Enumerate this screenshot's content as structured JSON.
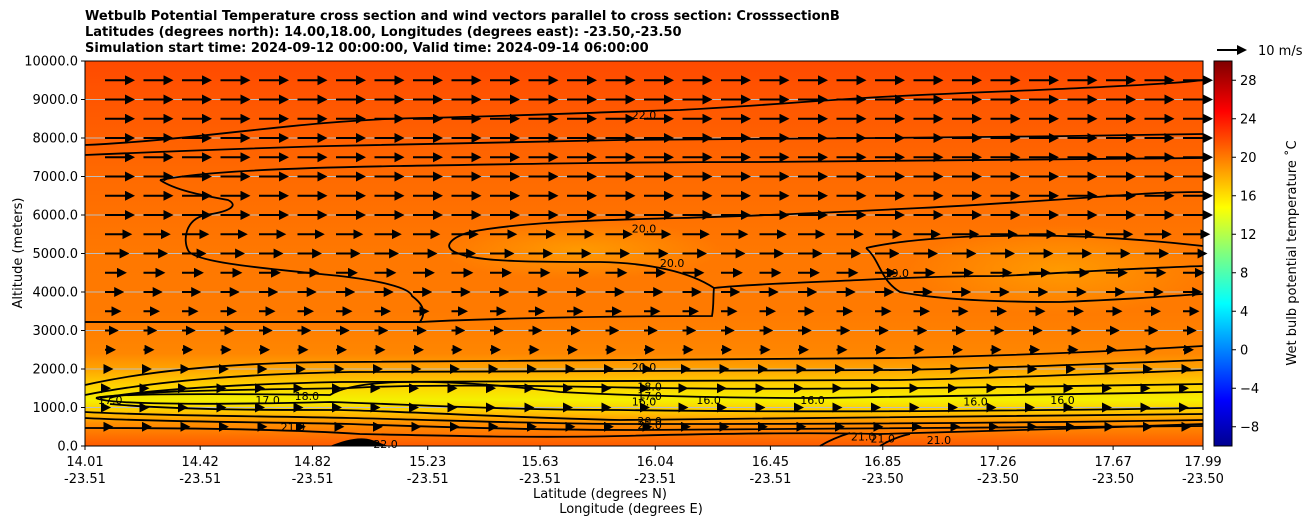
{
  "title_lines": [
    "Wetbulb Potential Temperature cross section and wind vectors parallel to cross section: CrosssectionB",
    "Latitudes (degrees north): 14.00,18.00, Longitudes (degrees east): -23.50,-23.50",
    "Simulation start time: 2024-09-12 00:00:00, Valid time: 2024-09-14 06:00:00"
  ],
  "chart_data": {
    "type": "heatmap",
    "variable": "Wet bulb potential temperature",
    "ylabel": "Altitude (meters)",
    "xlabel_lat": "Latitude (degrees N)",
    "xlabel_lon": "Longitude (degrees E)",
    "ylim": [
      0,
      10000
    ],
    "y_ticks": [
      "0.0",
      "1000.0",
      "2000.0",
      "3000.0",
      "4000.0",
      "5000.0",
      "6000.0",
      "7000.0",
      "8000.0",
      "9000.0",
      "10000.0"
    ],
    "y_tick_values": [
      0,
      1000,
      2000,
      3000,
      4000,
      5000,
      6000,
      7000,
      8000,
      9000,
      10000
    ],
    "x_ticks_lat": [
      "14.01",
      "14.42",
      "14.82",
      "15.23",
      "15.63",
      "16.04",
      "16.45",
      "16.85",
      "17.26",
      "17.67",
      "17.99"
    ],
    "x_ticks_lon": [
      "-23.51",
      "-23.51",
      "-23.51",
      "-23.51",
      "-23.51",
      "-23.51",
      "-23.51",
      "-23.50",
      "-23.50",
      "-23.50",
      "-23.50"
    ],
    "x_tick_values": [
      14.01,
      14.42,
      14.82,
      15.23,
      15.63,
      16.04,
      16.45,
      16.85,
      17.26,
      17.67,
      17.99
    ],
    "xlim": [
      14.01,
      17.99
    ],
    "grid": "horizontal",
    "colorbar": {
      "label": "Wet bulb potential temperature ˚C",
      "range": [
        -10,
        30
      ],
      "ticks": [
        "−8",
        "−4",
        "0",
        "4",
        "8",
        "12",
        "16",
        "20",
        "24",
        "28"
      ],
      "tick_values": [
        -8,
        -4,
        0,
        4,
        8,
        12,
        16,
        20,
        24,
        28
      ],
      "colormap": "jet"
    },
    "contour_labels": [
      {
        "text": "22.0",
        "lat": 16.0,
        "alt": 8600
      },
      {
        "text": "20.0",
        "lat": 16.0,
        "alt": 5650
      },
      {
        "text": "20.0",
        "lat": 16.1,
        "alt": 4750
      },
      {
        "text": "19.0",
        "lat": 16.9,
        "alt": 4500
      },
      {
        "text": "20.0",
        "lat": 16.0,
        "alt": 2050
      },
      {
        "text": "18.0",
        "lat": 16.02,
        "alt": 1550
      },
      {
        "text": "17.0",
        "lat": 16.02,
        "alt": 1300
      },
      {
        "text": "16.0",
        "lat": 16.0,
        "alt": 1150
      },
      {
        "text": "17.0",
        "lat": 14.1,
        "alt": 1200
      },
      {
        "text": "17.0",
        "lat": 14.66,
        "alt": 1200
      },
      {
        "text": "18.0",
        "lat": 14.8,
        "alt": 1300
      },
      {
        "text": "16.0",
        "lat": 16.23,
        "alt": 1200
      },
      {
        "text": "16.0",
        "lat": 16.6,
        "alt": 1200
      },
      {
        "text": "16.0",
        "lat": 17.18,
        "alt": 1150
      },
      {
        "text": "16.0",
        "lat": 17.49,
        "alt": 1200
      },
      {
        "text": "20.0",
        "lat": 16.02,
        "alt": 650
      },
      {
        "text": "21.0",
        "lat": 16.02,
        "alt": 550
      },
      {
        "text": "21.0",
        "lat": 14.75,
        "alt": 500
      },
      {
        "text": "22.0",
        "lat": 15.08,
        "alt": 50
      },
      {
        "text": "21.0",
        "lat": 16.78,
        "alt": 250
      },
      {
        "text": "21.0",
        "lat": 16.85,
        "alt": 200
      },
      {
        "text": "21.0",
        "lat": 17.05,
        "alt": 150
      }
    ],
    "wind_key": {
      "label": "10 m/s",
      "speed": 10
    },
    "wind_levels": [
      {
        "alt": 9500,
        "speed": 10
      },
      {
        "alt": 9000,
        "speed": 10
      },
      {
        "alt": 8500,
        "speed": 10
      },
      {
        "alt": 8000,
        "speed": 10
      },
      {
        "alt": 7500,
        "speed": 10
      },
      {
        "alt": 7000,
        "speed": 10
      },
      {
        "alt": 6500,
        "speed": 10
      },
      {
        "alt": 6000,
        "speed": 10
      },
      {
        "alt": 5500,
        "speed": 9
      },
      {
        "alt": 5000,
        "speed": 8
      },
      {
        "alt": 4500,
        "speed": 7
      },
      {
        "alt": 4000,
        "speed": 6
      },
      {
        "alt": 3500,
        "speed": 5
      },
      {
        "alt": 3000,
        "speed": 4
      },
      {
        "alt": 2500,
        "speed": 3
      },
      {
        "alt": 2000,
        "speed": 2
      },
      {
        "alt": 1500,
        "speed": 1
      },
      {
        "alt": 1000,
        "speed": 1
      },
      {
        "alt": 500,
        "speed": 2
      }
    ]
  }
}
